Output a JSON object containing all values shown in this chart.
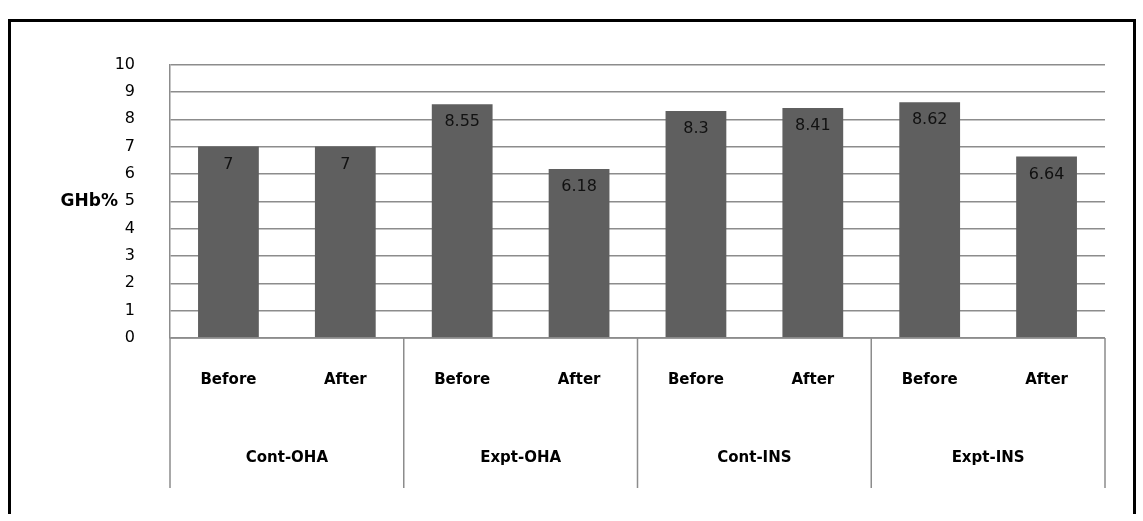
{
  "chart_data": {
    "type": "bar",
    "ylabel": "GHb%",
    "categories": [
      "Before",
      "After",
      "Before",
      "After",
      "Before",
      "After",
      "Before",
      "After"
    ],
    "values": [
      7,
      7,
      8.55,
      6.18,
      8.3,
      8.41,
      8.62,
      6.64
    ],
    "color": "#5f5f5f",
    "ylim": [
      0,
      10
    ],
    "yticks": [
      0,
      1,
      2,
      3,
      4,
      5,
      6,
      7,
      8,
      9,
      10
    ],
    "grid": "y",
    "data_labels": true,
    "legend": false,
    "annotations": [
      "Cont-OHA",
      "Expt-OHA",
      "Cont-INS",
      "Expt-INS"
    ]
  }
}
